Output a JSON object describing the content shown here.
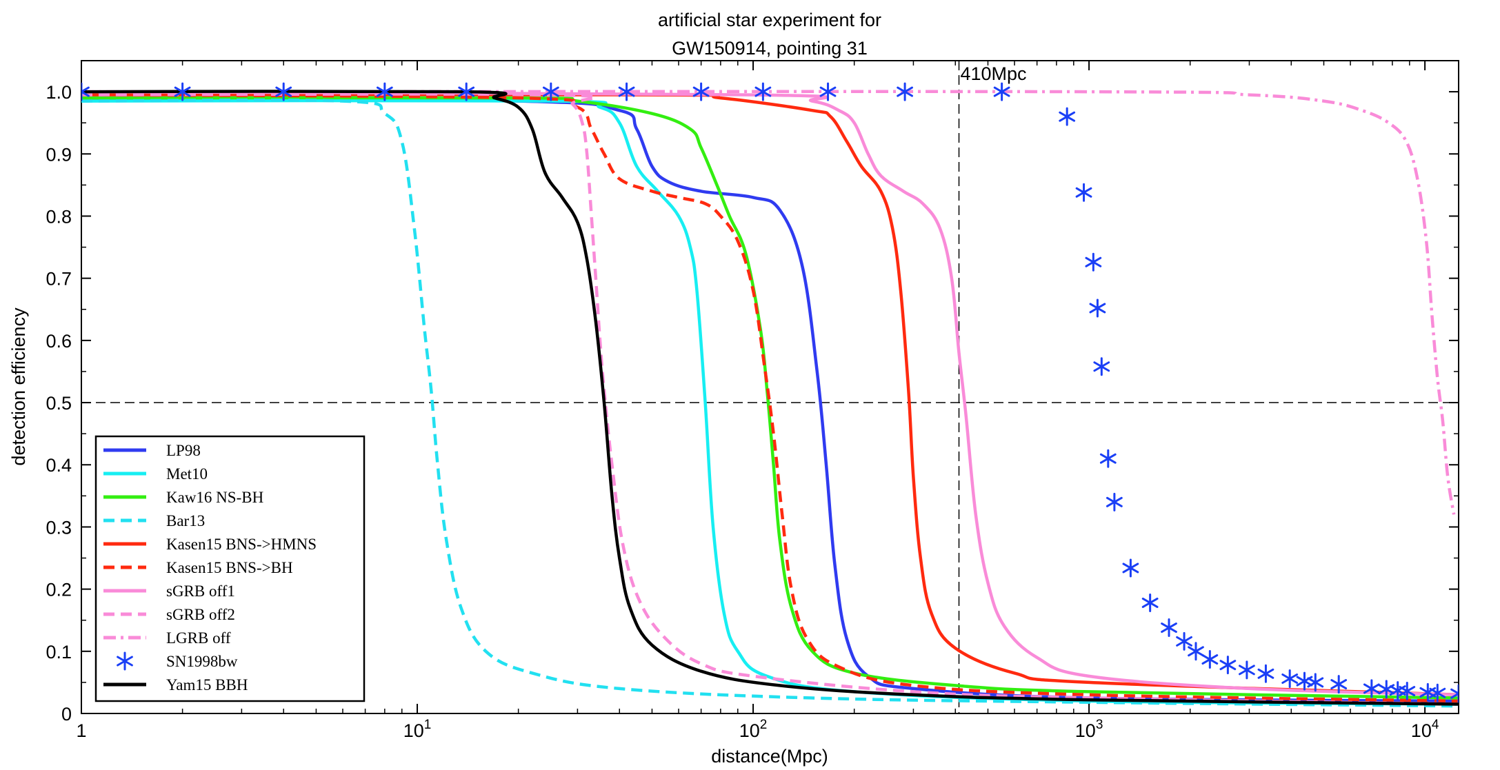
{
  "chart_data": {
    "type": "line",
    "title": [
      "artificial star experiment for",
      "GW150914, pointing 31"
    ],
    "xlabel": "distance(Mpc)",
    "ylabel": "detection efficiency",
    "xscale": "log",
    "xlim": [
      1,
      12600
    ],
    "ylim": [
      0,
      1.05
    ],
    "x_ticks": [
      {
        "v": 1,
        "base": "1",
        "exp": ""
      },
      {
        "v": 10,
        "base": "10",
        "exp": "1"
      },
      {
        "v": 100,
        "base": "10",
        "exp": "2"
      },
      {
        "v": 1000,
        "base": "10",
        "exp": "3"
      },
      {
        "v": 10000,
        "base": "10",
        "exp": "4"
      }
    ],
    "y_ticks": [
      0,
      0.1,
      0.2,
      0.3,
      0.4,
      0.5,
      0.6,
      0.7,
      0.8,
      0.9,
      1.0
    ],
    "y_tick_labels": [
      "0",
      "0.1",
      "0.2",
      "0.3",
      "0.4",
      "0.5",
      "0.6",
      "0.7",
      "0.8",
      "0.9",
      "1.0"
    ],
    "reference_lines": [
      {
        "axis": "x",
        "value": 410,
        "label": "410Mpc",
        "style": "dashed"
      },
      {
        "axis": "y",
        "value": 0.5,
        "label": "",
        "style": "dashed"
      }
    ],
    "series": [
      {
        "name": "LP98",
        "color": "#2f3bf0",
        "dash": "solid",
        "points": [
          [
            1,
            0.99
          ],
          [
            20,
            0.985
          ],
          [
            40,
            0.97
          ],
          [
            45,
            0.94
          ],
          [
            50,
            0.88
          ],
          [
            56,
            0.855
          ],
          [
            70,
            0.84
          ],
          [
            100,
            0.83
          ],
          [
            120,
            0.81
          ],
          [
            140,
            0.72
          ],
          [
            155,
            0.55
          ],
          [
            165,
            0.4
          ],
          [
            175,
            0.24
          ],
          [
            190,
            0.12
          ],
          [
            220,
            0.06
          ],
          [
            300,
            0.04
          ],
          [
            1000,
            0.025
          ],
          [
            12600,
            0.02
          ]
        ]
      },
      {
        "name": "Met10",
        "color": "#17eef2",
        "dash": "solid",
        "points": [
          [
            1,
            0.985
          ],
          [
            25,
            0.985
          ],
          [
            35,
            0.975
          ],
          [
            40,
            0.95
          ],
          [
            45,
            0.88
          ],
          [
            52,
            0.84
          ],
          [
            60,
            0.8
          ],
          [
            65,
            0.75
          ],
          [
            68,
            0.68
          ],
          [
            72,
            0.5
          ],
          [
            76,
            0.3
          ],
          [
            82,
            0.16
          ],
          [
            90,
            0.1
          ],
          [
            110,
            0.06
          ],
          [
            200,
            0.035
          ],
          [
            1000,
            0.02
          ],
          [
            12600,
            0.015
          ]
        ]
      },
      {
        "name": "Kaw16 NS-BH",
        "color": "#33ee11",
        "dash": "solid",
        "points": [
          [
            1,
            0.99
          ],
          [
            20,
            0.99
          ],
          [
            30,
            0.985
          ],
          [
            50,
            0.965
          ],
          [
            65,
            0.94
          ],
          [
            70,
            0.91
          ],
          [
            78,
            0.85
          ],
          [
            85,
            0.8
          ],
          [
            95,
            0.74
          ],
          [
            105,
            0.62
          ],
          [
            110,
            0.52
          ],
          [
            115,
            0.4
          ],
          [
            120,
            0.28
          ],
          [
            130,
            0.17
          ],
          [
            150,
            0.1
          ],
          [
            200,
            0.065
          ],
          [
            400,
            0.045
          ],
          [
            1000,
            0.035
          ],
          [
            12600,
            0.025
          ]
        ]
      },
      {
        "name": "Bar13",
        "color": "#22e0f0",
        "dash": "dashed",
        "points": [
          [
            1,
            0.985
          ],
          [
            6,
            0.985
          ],
          [
            8,
            0.965
          ],
          [
            9,
            0.92
          ],
          [
            9.8,
            0.78
          ],
          [
            10.5,
            0.62
          ],
          [
            11,
            0.52
          ],
          [
            11.5,
            0.4
          ],
          [
            12.2,
            0.28
          ],
          [
            13.5,
            0.17
          ],
          [
            16,
            0.1
          ],
          [
            22,
            0.065
          ],
          [
            40,
            0.04
          ],
          [
            150,
            0.025
          ],
          [
            1000,
            0.018
          ],
          [
            12600,
            0.012
          ]
        ]
      },
      {
        "name": "Kasen15 BNS->HMNS",
        "color": "#ff2a0f",
        "dash": "solid",
        "points": [
          [
            1,
            0.995
          ],
          [
            50,
            0.995
          ],
          [
            80,
            0.99
          ],
          [
            150,
            0.97
          ],
          [
            170,
            0.96
          ],
          [
            190,
            0.92
          ],
          [
            210,
            0.88
          ],
          [
            240,
            0.84
          ],
          [
            260,
            0.78
          ],
          [
            275,
            0.68
          ],
          [
            290,
            0.52
          ],
          [
            300,
            0.38
          ],
          [
            315,
            0.25
          ],
          [
            340,
            0.16
          ],
          [
            400,
            0.105
          ],
          [
            600,
            0.065
          ],
          [
            1000,
            0.05
          ],
          [
            12600,
            0.03
          ]
        ]
      },
      {
        "name": "Kasen15 BNS->BH",
        "color": "#ff2a0f",
        "dash": "dashed",
        "points": [
          [
            1,
            0.995
          ],
          [
            20,
            0.99
          ],
          [
            30,
            0.975
          ],
          [
            33,
            0.94
          ],
          [
            36,
            0.9
          ],
          [
            40,
            0.86
          ],
          [
            50,
            0.84
          ],
          [
            60,
            0.83
          ],
          [
            72,
            0.82
          ],
          [
            80,
            0.8
          ],
          [
            90,
            0.76
          ],
          [
            100,
            0.68
          ],
          [
            108,
            0.56
          ],
          [
            115,
            0.45
          ],
          [
            122,
            0.32
          ],
          [
            130,
            0.2
          ],
          [
            145,
            0.12
          ],
          [
            180,
            0.075
          ],
          [
            300,
            0.045
          ],
          [
            1000,
            0.03
          ],
          [
            12600,
            0.02
          ]
        ]
      },
      {
        "name": "sGRB off1",
        "color": "#f98bd8",
        "dash": "solid",
        "points": [
          [
            1,
            1.0
          ],
          [
            100,
            0.995
          ],
          [
            150,
            0.985
          ],
          [
            180,
            0.97
          ],
          [
            200,
            0.95
          ],
          [
            220,
            0.9
          ],
          [
            240,
            0.865
          ],
          [
            280,
            0.84
          ],
          [
            320,
            0.82
          ],
          [
            360,
            0.78
          ],
          [
            390,
            0.7
          ],
          [
            410,
            0.58
          ],
          [
            430,
            0.48
          ],
          [
            460,
            0.32
          ],
          [
            500,
            0.21
          ],
          [
            560,
            0.14
          ],
          [
            700,
            0.09
          ],
          [
            1000,
            0.06
          ],
          [
            3000,
            0.04
          ],
          [
            12600,
            0.03
          ]
        ]
      },
      {
        "name": "sGRB off2",
        "color": "#f98bd8",
        "dash": "dashed",
        "points": [
          [
            1,
            0.995
          ],
          [
            25,
            0.995
          ],
          [
            29,
            0.98
          ],
          [
            31,
            0.95
          ],
          [
            32,
            0.9
          ],
          [
            33,
            0.8
          ],
          [
            34,
            0.7
          ],
          [
            35,
            0.6
          ],
          [
            36,
            0.52
          ],
          [
            38,
            0.4
          ],
          [
            41,
            0.27
          ],
          [
            46,
            0.18
          ],
          [
            55,
            0.12
          ],
          [
            70,
            0.08
          ],
          [
            100,
            0.06
          ],
          [
            300,
            0.035
          ],
          [
            1000,
            0.025
          ],
          [
            12600,
            0.015
          ]
        ]
      },
      {
        "name": "LGRB off",
        "color": "#f98bd8",
        "dash": "dashdot",
        "points": [
          [
            1,
            1.0
          ],
          [
            1000,
            1.0
          ],
          [
            3000,
            0.995
          ],
          [
            5000,
            0.985
          ],
          [
            6500,
            0.97
          ],
          [
            7800,
            0.95
          ],
          [
            8800,
            0.92
          ],
          [
            9500,
            0.86
          ],
          [
            10100,
            0.76
          ],
          [
            10500,
            0.64
          ],
          [
            10900,
            0.54
          ],
          [
            11300,
            0.47
          ],
          [
            11700,
            0.38
          ],
          [
            12200,
            0.32
          ]
        ]
      },
      {
        "name": "SN1998bw",
        "color": "#1a3ff6",
        "dash": "marker",
        "points": [
          [
            1,
            1.0
          ],
          [
            2,
            1.0
          ],
          [
            4,
            1.0
          ],
          [
            8,
            1.0
          ],
          [
            14,
            1.0
          ],
          [
            25,
            1.0
          ],
          [
            42,
            1.0
          ],
          [
            70,
            1.0
          ],
          [
            107,
            1.0
          ],
          [
            167,
            1.0
          ],
          [
            283,
            1.0
          ],
          [
            550,
            1.0
          ],
          [
            860,
            0.96
          ],
          [
            965,
            0.838
          ],
          [
            1030,
            0.726
          ],
          [
            1060,
            0.652
          ],
          [
            1090,
            0.558
          ],
          [
            1140,
            0.41
          ],
          [
            1190,
            0.34
          ],
          [
            1330,
            0.234
          ],
          [
            1520,
            0.178
          ],
          [
            1730,
            0.138
          ],
          [
            1920,
            0.116
          ],
          [
            2080,
            0.1
          ],
          [
            2290,
            0.087
          ],
          [
            2590,
            0.078
          ],
          [
            2950,
            0.07
          ],
          [
            3360,
            0.064
          ],
          [
            3960,
            0.056
          ],
          [
            4380,
            0.052
          ],
          [
            4720,
            0.05
          ],
          [
            5540,
            0.047
          ],
          [
            6940,
            0.04
          ],
          [
            7680,
            0.039
          ],
          [
            8300,
            0.037
          ],
          [
            8850,
            0.036
          ],
          [
            10200,
            0.034
          ],
          [
            10900,
            0.033
          ],
          [
            12600,
            0.032
          ]
        ]
      },
      {
        "name": "Yam15 BBH",
        "color": "#000000",
        "dash": "solid",
        "points": [
          [
            1,
            1.0
          ],
          [
            14,
            1.0
          ],
          [
            17,
            0.99
          ],
          [
            20,
            0.975
          ],
          [
            22,
            0.94
          ],
          [
            24,
            0.87
          ],
          [
            27,
            0.83
          ],
          [
            30,
            0.79
          ],
          [
            32,
            0.73
          ],
          [
            34,
            0.63
          ],
          [
            36,
            0.5
          ],
          [
            38,
            0.35
          ],
          [
            40,
            0.25
          ],
          [
            43,
            0.17
          ],
          [
            50,
            0.11
          ],
          [
            70,
            0.068
          ],
          [
            120,
            0.045
          ],
          [
            300,
            0.03
          ],
          [
            1000,
            0.022
          ],
          [
            12600,
            0.015
          ]
        ]
      }
    ]
  }
}
